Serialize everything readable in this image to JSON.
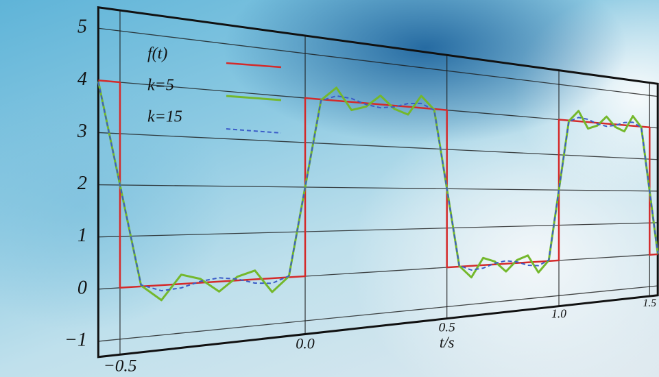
{
  "chart_data": {
    "type": "line",
    "xlabel": "t/s",
    "xlim": [
      -0.55,
      1.55
    ],
    "ylim": [
      -1.3,
      5.4
    ],
    "xticks": [
      {
        "value": -0.5,
        "label": "−0.5"
      },
      {
        "value": 0,
        "label": "0.0"
      },
      {
        "value": 0.5,
        "label": "0.5"
      },
      {
        "value": 1,
        "label": "1.0"
      },
      {
        "value": 1.5,
        "label": "1.5"
      }
    ],
    "yticks": [
      {
        "value": -1,
        "label": "−1"
      },
      0,
      1,
      2,
      3,
      4,
      5
    ],
    "grid": true,
    "legend": "upper left",
    "series": [
      {
        "name": "f(t)",
        "color": "#d42a2a",
        "linestyle": "solid",
        "x": [
          -0.55,
          -0.5,
          -0.5,
          0,
          0,
          0.5,
          0.5,
          1,
          1,
          1.5,
          1.5,
          1.55
        ],
        "values": [
          4,
          4,
          0,
          0,
          4,
          4,
          0,
          0,
          4,
          4,
          0,
          0
        ]
      },
      {
        "name": "k=5",
        "color": "#74b82c",
        "linestyle": "solid",
        "x": [
          -0.55,
          -0.5,
          -0.45,
          -0.4,
          -0.35,
          -0.3,
          -0.25,
          -0.2,
          -0.15,
          -0.1,
          -0.05,
          0,
          0.05,
          0.1,
          0.15,
          0.2,
          0.25,
          0.3,
          0.35,
          0.4,
          0.45,
          0.5,
          0.55,
          0.6,
          0.65,
          0.7,
          0.75,
          0.8,
          0.85,
          0.9,
          0.95,
          1,
          1.05,
          1.1,
          1.15,
          1.2,
          1.25,
          1.3,
          1.35,
          1.4,
          1.45,
          1.5,
          1.55
        ],
        "values": [
          3.98,
          2,
          0.02,
          -0.3,
          0.19,
          0.08,
          -0.21,
          0.08,
          0.19,
          -0.3,
          0.02,
          2,
          3.98,
          4.3,
          3.81,
          3.92,
          4.21,
          3.92,
          3.81,
          4.3,
          3.98,
          2,
          0.02,
          -0.3,
          0.19,
          0.08,
          -0.21,
          0.08,
          0.19,
          -0.3,
          0.02,
          2,
          3.98,
          4.3,
          3.81,
          3.92,
          4.21,
          3.92,
          3.81,
          4.3,
          3.98,
          2,
          0.02
        ]
      },
      {
        "name": "k=15",
        "color": "#3b5cc8",
        "linestyle": "dashed",
        "x": [
          -0.55,
          -0.5,
          -0.45,
          -0.4,
          -0.35,
          -0.3,
          -0.25,
          -0.2,
          -0.15,
          -0.1,
          -0.05,
          0,
          0.05,
          0.1,
          0.15,
          0.2,
          0.25,
          0.3,
          0.35,
          0.4,
          0.45,
          0.5,
          0.55,
          0.6,
          0.65,
          0.7,
          0.75,
          0.8,
          0.85,
          0.9,
          0.95,
          1,
          1.05,
          1.1,
          1.15,
          1.2,
          1.25,
          1.3,
          1.35,
          1.4,
          1.45,
          1.5,
          1.55
        ],
        "values": [
          3.97,
          2,
          0.03,
          -0.11,
          -0.08,
          0.03,
          0.08,
          0.03,
          -0.08,
          -0.11,
          0.03,
          2,
          3.97,
          4.11,
          4.08,
          3.97,
          3.92,
          3.97,
          4.08,
          4.11,
          3.97,
          2,
          0.03,
          -0.11,
          -0.08,
          0.03,
          0.08,
          0.03,
          -0.08,
          -0.11,
          0.03,
          2,
          3.97,
          4.11,
          4.08,
          3.97,
          3.92,
          3.97,
          4.08,
          4.11,
          3.97,
          2,
          0.03
        ]
      }
    ]
  }
}
